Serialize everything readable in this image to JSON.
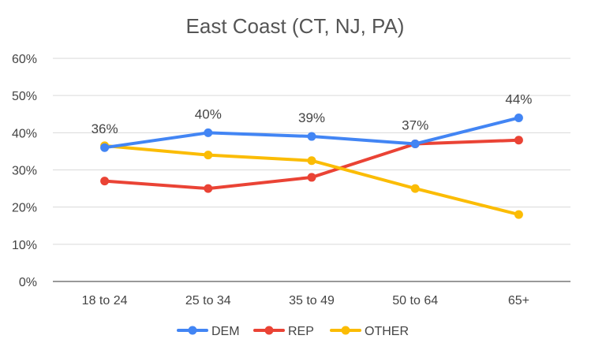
{
  "chart_data": {
    "type": "line",
    "title": "East Coast (CT, NJ, PA)",
    "categories": [
      "18 to 24",
      "25 to 34",
      "35 to 49",
      "50 to 64",
      "65+"
    ],
    "ylim": [
      0,
      60
    ],
    "yticks": [
      0,
      10,
      20,
      30,
      40,
      50,
      60
    ],
    "ytick_labels": [
      "0%",
      "10%",
      "20%",
      "30%",
      "40%",
      "50%",
      "60%"
    ],
    "grid": true,
    "legend_position": "bottom",
    "series": [
      {
        "name": "DEM",
        "color": "#4285f4",
        "values": [
          36,
          40,
          39,
          37,
          44
        ],
        "data_labels": [
          "36%",
          "40%",
          "39%",
          "37%",
          "44%"
        ]
      },
      {
        "name": "REP",
        "color": "#ea4335",
        "values": [
          27,
          25,
          28,
          37,
          38
        ]
      },
      {
        "name": "OTHER",
        "color": "#fbbc04",
        "values": [
          36.5,
          34,
          32.5,
          25,
          18
        ]
      }
    ]
  }
}
